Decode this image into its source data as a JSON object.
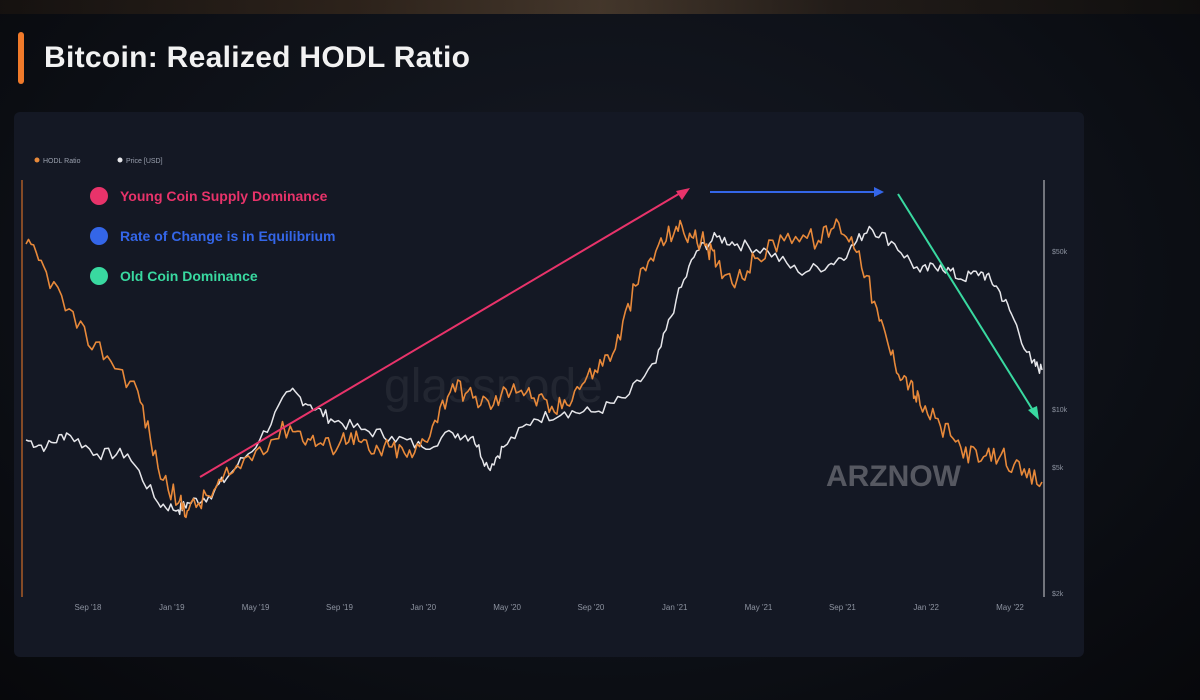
{
  "title": "Bitcoin: Realized HODL Ratio",
  "watermarks": [
    "glassnode",
    "ARZNOW"
  ],
  "colors": {
    "accent": "#f07a2a",
    "hodl_series": "#e8893a",
    "price_series": "#e6e6ea",
    "young": "#e8336a",
    "equilibrium": "#3466e8",
    "old": "#39d9a0"
  },
  "annotations": [
    {
      "label": "Young Coin Supply Dominance",
      "color": "#e8336a"
    },
    {
      "label": "Rate of Change is in Equilibrium",
      "color": "#3466e8"
    },
    {
      "label": "Old Coin Dominance",
      "color": "#39d9a0"
    }
  ],
  "chart_data": {
    "type": "line",
    "legend": [
      "HODL Ratio",
      "Price [USD]"
    ],
    "legend_position": "top-left",
    "grid": false,
    "x_ticks": [
      "Sep '18",
      "Jan '19",
      "May '19",
      "Sep '19",
      "Jan '20",
      "May '20",
      "Sep '20",
      "Jan '21",
      "May '21",
      "Sep '21",
      "Jan '22",
      "May '22"
    ],
    "right_ticks": [
      "$50k",
      "$10k",
      "$5k",
      "$2k"
    ],
    "series": [
      {
        "name": "HODL Ratio",
        "color": "#e8893a",
        "t": [
          0.0,
          0.02,
          0.05,
          0.08,
          0.11,
          0.13,
          0.15,
          0.16,
          0.18,
          0.2,
          0.23,
          0.26,
          0.28,
          0.3,
          0.32,
          0.34,
          0.36,
          0.38,
          0.4,
          0.42,
          0.44,
          0.46,
          0.48,
          0.5,
          0.52,
          0.54,
          0.56,
          0.58,
          0.6,
          0.62,
          0.64,
          0.655,
          0.67,
          0.68,
          0.7,
          0.72,
          0.75,
          0.78,
          0.8,
          0.82,
          0.84,
          0.855,
          0.87,
          0.88,
          0.9,
          0.92,
          0.94,
          0.96,
          0.98,
          1.0
        ],
        "v": [
          0.88,
          0.8,
          0.64,
          0.56,
          0.46,
          0.24,
          0.14,
          0.12,
          0.16,
          0.22,
          0.3,
          0.36,
          0.32,
          0.3,
          0.34,
          0.28,
          0.3,
          0.27,
          0.36,
          0.48,
          0.44,
          0.42,
          0.48,
          0.44,
          0.4,
          0.46,
          0.52,
          0.58,
          0.76,
          0.86,
          0.93,
          0.9,
          0.88,
          0.82,
          0.78,
          0.84,
          0.91,
          0.89,
          0.94,
          0.86,
          0.66,
          0.54,
          0.48,
          0.42,
          0.36,
          0.3,
          0.26,
          0.28,
          0.22,
          0.2
        ]
      },
      {
        "name": "Price [USD]",
        "color": "#e6e6ea",
        "t": [
          0.0,
          0.02,
          0.04,
          0.07,
          0.1,
          0.13,
          0.15,
          0.16,
          0.18,
          0.2,
          0.23,
          0.26,
          0.28,
          0.3,
          0.33,
          0.36,
          0.39,
          0.42,
          0.44,
          0.455,
          0.47,
          0.5,
          0.53,
          0.56,
          0.59,
          0.62,
          0.64,
          0.66,
          0.68,
          0.7,
          0.73,
          0.76,
          0.79,
          0.81,
          0.83,
          0.855,
          0.88,
          0.9,
          0.92,
          0.94,
          0.955,
          0.97,
          0.99,
          1.0
        ],
        "v": [
          0.32,
          0.3,
          0.34,
          0.28,
          0.28,
          0.14,
          0.12,
          0.14,
          0.16,
          0.22,
          0.32,
          0.46,
          0.42,
          0.38,
          0.35,
          0.33,
          0.3,
          0.34,
          0.33,
          0.24,
          0.3,
          0.38,
          0.4,
          0.4,
          0.44,
          0.54,
          0.72,
          0.86,
          0.9,
          0.88,
          0.86,
          0.8,
          0.82,
          0.86,
          0.93,
          0.88,
          0.8,
          0.82,
          0.78,
          0.8,
          0.76,
          0.68,
          0.54,
          0.52
        ]
      }
    ]
  }
}
